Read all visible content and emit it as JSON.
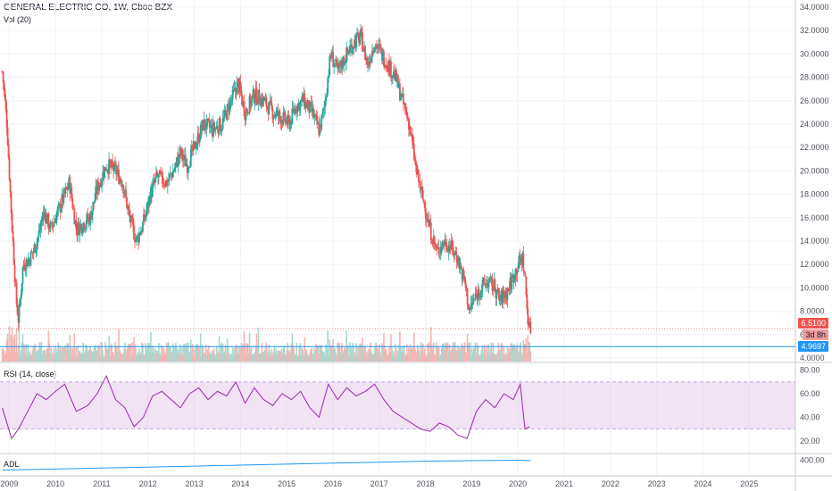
{
  "header": {
    "title": "GENERAL ELECTRIC CO, 1W, Cboe BZX",
    "vol_label": "Vol (20)"
  },
  "rsi_label": "RSI (14, close)",
  "adl_label": "ADL",
  "price_tags": {
    "last": "6.5100",
    "countdown": "3d 8h",
    "level": "4.9697"
  },
  "colors": {
    "up": "#26a69a",
    "down": "#ef5350",
    "rsi_line": "#9c27b0",
    "rsi_band": "#e1bee7",
    "adl_line": "#2196f3",
    "last_tag": "#ef5350",
    "level_line": "#2196f3",
    "countdown_tag": "#ef9a9a"
  },
  "chart_data": [
    {
      "type": "candlestick",
      "title": "GENERAL ELECTRIC CO, 1W, Cboe BZX",
      "ylim": [
        4,
        34
      ],
      "y_ticks": [
        "4.0000",
        "6.0000",
        "8.0000",
        "10.0000",
        "12.0000",
        "14.0000",
        "16.0000",
        "18.0000",
        "20.0000",
        "22.0000",
        "24.0000",
        "26.0000",
        "28.0000",
        "30.0000",
        "32.0000",
        "34.0000"
      ],
      "x_ticks": [
        "2009",
        "2010",
        "2011",
        "2012",
        "2013",
        "2014",
        "2015",
        "2016",
        "2017",
        "2018",
        "2019",
        "2020",
        "2021",
        "2022",
        "2023",
        "2024",
        "2025"
      ],
      "close_path": [
        [
          2008.85,
          28.5
        ],
        [
          2008.95,
          24.0
        ],
        [
          2009.05,
          16.0
        ],
        [
          2009.15,
          9.0
        ],
        [
          2009.2,
          7.2
        ],
        [
          2009.3,
          12.0
        ],
        [
          2009.45,
          12.5
        ],
        [
          2009.6,
          14.0
        ],
        [
          2009.75,
          16.5
        ],
        [
          2009.9,
          15.0
        ],
        [
          2010.0,
          16.0
        ],
        [
          2010.15,
          17.5
        ],
        [
          2010.3,
          19.0
        ],
        [
          2010.45,
          15.0
        ],
        [
          2010.6,
          15.5
        ],
        [
          2010.75,
          16.0
        ],
        [
          2010.9,
          18.5
        ],
        [
          2011.1,
          20.5
        ],
        [
          2011.3,
          20.0
        ],
        [
          2011.45,
          19.0
        ],
        [
          2011.6,
          16.0
        ],
        [
          2011.75,
          14.0
        ],
        [
          2011.9,
          15.5
        ],
        [
          2012.05,
          18.0
        ],
        [
          2012.2,
          19.5
        ],
        [
          2012.4,
          19.0
        ],
        [
          2012.55,
          20.0
        ],
        [
          2012.7,
          21.5
        ],
        [
          2012.85,
          20.5
        ],
        [
          2013.0,
          22.0
        ],
        [
          2013.2,
          24.0
        ],
        [
          2013.4,
          23.5
        ],
        [
          2013.6,
          24.0
        ],
        [
          2013.8,
          26.0
        ],
        [
          2013.95,
          27.5
        ],
        [
          2014.1,
          25.0
        ],
        [
          2014.3,
          26.5
        ],
        [
          2014.5,
          26.0
        ],
        [
          2014.7,
          25.0
        ],
        [
          2014.9,
          24.5
        ],
        [
          2015.05,
          24.0
        ],
        [
          2015.2,
          25.5
        ],
        [
          2015.35,
          26.0
        ],
        [
          2015.55,
          25.0
        ],
        [
          2015.7,
          23.5
        ],
        [
          2015.8,
          25.0
        ],
        [
          2015.95,
          30.0
        ],
        [
          2016.1,
          28.5
        ],
        [
          2016.3,
          30.0
        ],
        [
          2016.45,
          31.0
        ],
        [
          2016.6,
          31.5
        ],
        [
          2016.75,
          29.0
        ],
        [
          2016.9,
          31.0
        ],
        [
          2017.05,
          30.0
        ],
        [
          2017.2,
          29.0
        ],
        [
          2017.35,
          28.0
        ],
        [
          2017.5,
          26.0
        ],
        [
          2017.65,
          24.0
        ],
        [
          2017.8,
          20.0
        ],
        [
          2017.95,
          17.5
        ],
        [
          2018.1,
          15.0
        ],
        [
          2018.25,
          13.0
        ],
        [
          2018.4,
          14.0
        ],
        [
          2018.55,
          13.5
        ],
        [
          2018.7,
          12.5
        ],
        [
          2018.85,
          10.5
        ],
        [
          2018.95,
          8.0
        ],
        [
          2019.05,
          9.0
        ],
        [
          2019.2,
          10.0
        ],
        [
          2019.35,
          10.5
        ],
        [
          2019.5,
          10.0
        ],
        [
          2019.6,
          9.0
        ],
        [
          2019.75,
          9.5
        ],
        [
          2019.9,
          11.0
        ],
        [
          2020.0,
          12.0
        ],
        [
          2020.1,
          12.5
        ],
        [
          2020.15,
          11.0
        ],
        [
          2020.2,
          8.0
        ],
        [
          2020.25,
          6.5
        ],
        [
          2020.28,
          6.51
        ]
      ],
      "last_price": 6.51,
      "level_price": 4.9697
    },
    {
      "type": "line",
      "title": "RSI (14, close)",
      "ylim": [
        10,
        85
      ],
      "y_ticks": [
        "20.00",
        "40.00",
        "60.00",
        "80.00"
      ],
      "bands": [
        30,
        70
      ],
      "x": [
        2008.85,
        2009.05,
        2009.2,
        2009.4,
        2009.6,
        2009.8,
        2010.0,
        2010.2,
        2010.45,
        2010.7,
        2010.9,
        2011.1,
        2011.3,
        2011.5,
        2011.7,
        2011.9,
        2012.1,
        2012.3,
        2012.5,
        2012.7,
        2012.9,
        2013.1,
        2013.3,
        2013.5,
        2013.7,
        2013.9,
        2014.1,
        2014.3,
        2014.5,
        2014.7,
        2014.9,
        2015.1,
        2015.3,
        2015.5,
        2015.7,
        2015.9,
        2016.1,
        2016.3,
        2016.5,
        2016.7,
        2016.9,
        2017.1,
        2017.3,
        2017.5,
        2017.7,
        2017.9,
        2018.1,
        2018.3,
        2018.5,
        2018.7,
        2018.9,
        2019.1,
        2019.3,
        2019.5,
        2019.7,
        2019.9,
        2020.05,
        2020.15,
        2020.25
      ],
      "y": [
        48,
        22,
        30,
        45,
        60,
        55,
        62,
        68,
        45,
        50,
        60,
        75,
        55,
        48,
        32,
        40,
        58,
        62,
        55,
        48,
        60,
        65,
        55,
        62,
        58,
        70,
        52,
        65,
        55,
        50,
        60,
        55,
        62,
        48,
        40,
        68,
        55,
        65,
        58,
        62,
        68,
        55,
        45,
        40,
        35,
        30,
        28,
        35,
        32,
        25,
        22,
        45,
        55,
        48,
        60,
        55,
        68,
        30,
        32
      ]
    },
    {
      "type": "line",
      "title": "ADL",
      "y_ticks": [
        "400.00"
      ],
      "x": [
        2008.85,
        2010.0,
        2011.0,
        2012.0,
        2013.0,
        2014.0,
        2015.0,
        2016.0,
        2017.0,
        2018.0,
        2019.0,
        2020.0,
        2020.28
      ],
      "y": [
        380,
        382,
        384,
        386,
        388,
        390,
        392,
        394,
        396,
        398,
        399,
        400,
        399
      ]
    }
  ]
}
